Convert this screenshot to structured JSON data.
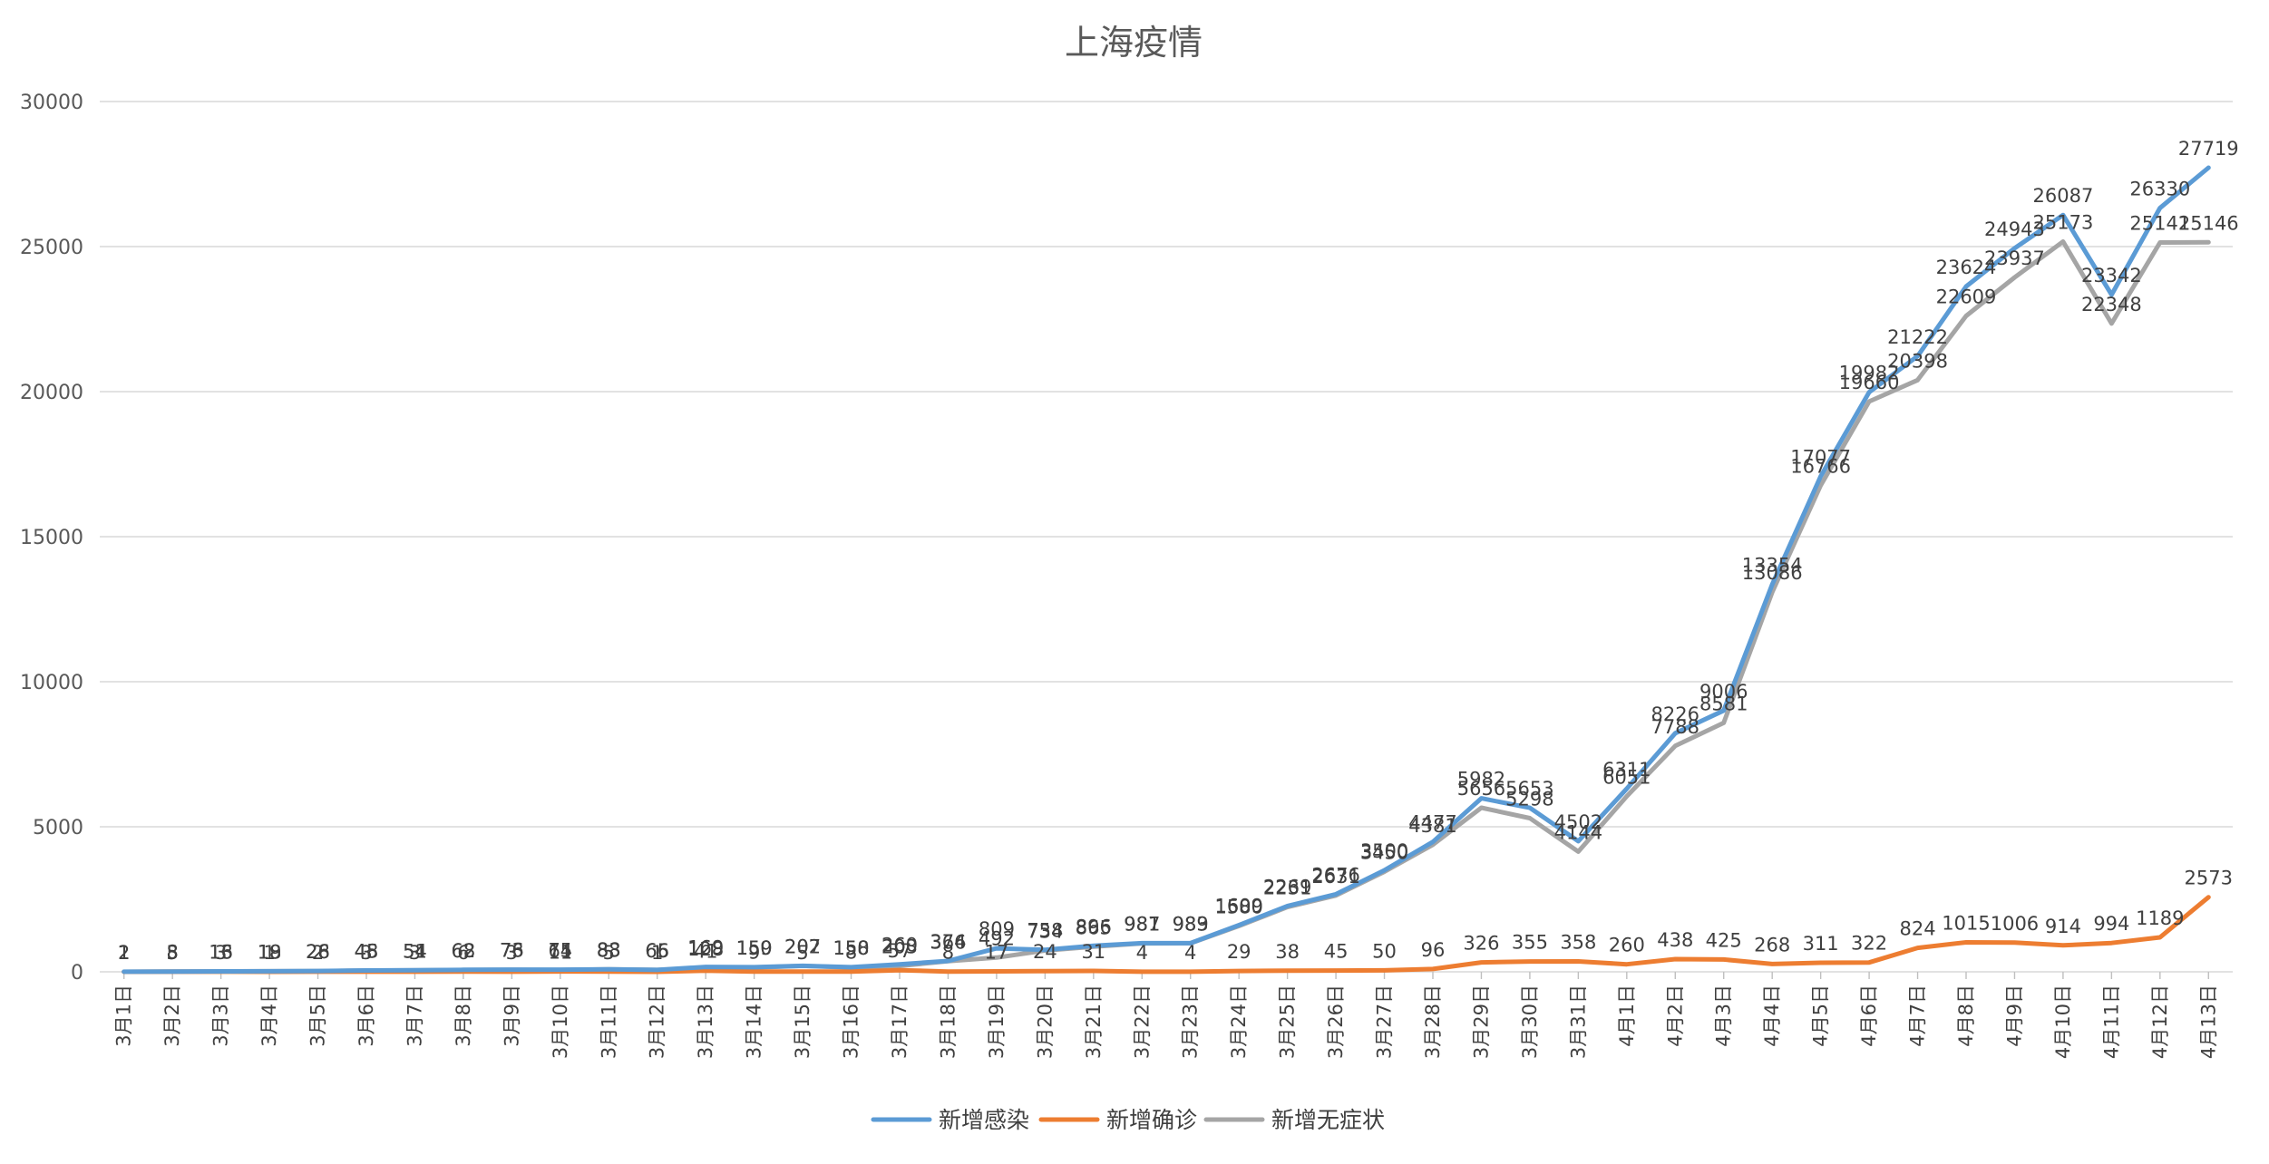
{
  "chart_data": {
    "type": "line",
    "title": "上海疫情",
    "xlabel": "",
    "ylabel": "",
    "ylim": [
      0,
      30000
    ],
    "yticks": [
      0,
      5000,
      10000,
      15000,
      20000,
      25000,
      30000
    ],
    "grid": "horizontal",
    "legend": "bottom",
    "categories": [
      "3月1日",
      "3月2日",
      "3月3日",
      "3月4日",
      "3月5日",
      "3月6日",
      "3月7日",
      "3月8日",
      "3月9日",
      "3月10日",
      "3月11日",
      "3月12日",
      "3月13日",
      "3月14日",
      "3月15日",
      "3月16日",
      "3月17日",
      "3月18日",
      "3月19日",
      "3月20日",
      "3月21日",
      "3月22日",
      "3月23日",
      "3月24日",
      "3月25日",
      "3月26日",
      "3月27日",
      "3月28日",
      "3月29日",
      "3月30日",
      "3月31日",
      "4月1日",
      "4月2日",
      "4月3日",
      "4月4日",
      "4月5日",
      "4月6日",
      "4月7日",
      "4月8日",
      "4月9日",
      "4月10日",
      "4月11日",
      "4月12日",
      "4月13日"
    ],
    "series": [
      {
        "name": "新增感染",
        "color": "#5b9bd5",
        "values": [
          2,
          8,
          16,
          19,
          28,
          48,
          54,
          68,
          76,
          75,
          88,
          66,
          169,
          159,
          207,
          158,
          260,
          374,
          809,
          758,
          896,
          987,
          989,
          1609,
          2269,
          2676,
          3500,
          4477,
          5982,
          5653,
          4502,
          6311,
          8226,
          9006,
          13354,
          17077,
          19982,
          21222,
          23624,
          24943,
          26087,
          23342,
          26330,
          27719
        ]
      },
      {
        "name": "新增确诊",
        "color": "#ed7d31",
        "values": [
          1,
          3,
          3,
          1,
          2,
          3,
          3,
          6,
          3,
          11,
          5,
          1,
          41,
          9,
          5,
          8,
          57,
          8,
          17,
          24,
          31,
          4,
          4,
          29,
          38,
          45,
          50,
          96,
          326,
          355,
          358,
          260,
          438,
          425,
          268,
          311,
          322,
          824,
          1015,
          1006,
          914,
          994,
          1189,
          2573
        ]
      },
      {
        "name": "新增无症状",
        "color": "#a5a5a5",
        "values": [
          1,
          5,
          13,
          18,
          26,
          45,
          51,
          62,
          73,
          64,
          83,
          65,
          128,
          150,
          202,
          150,
          203,
          366,
          492,
          734,
          865,
          981,
          983,
          1580,
          2231,
          2631,
          3450,
          4381,
          5656,
          5298,
          4144,
          6051,
          7788,
          8581,
          13086,
          16766,
          19660,
          20398,
          22609,
          23937,
          25173,
          22348,
          25141,
          25146
        ]
      }
    ]
  }
}
